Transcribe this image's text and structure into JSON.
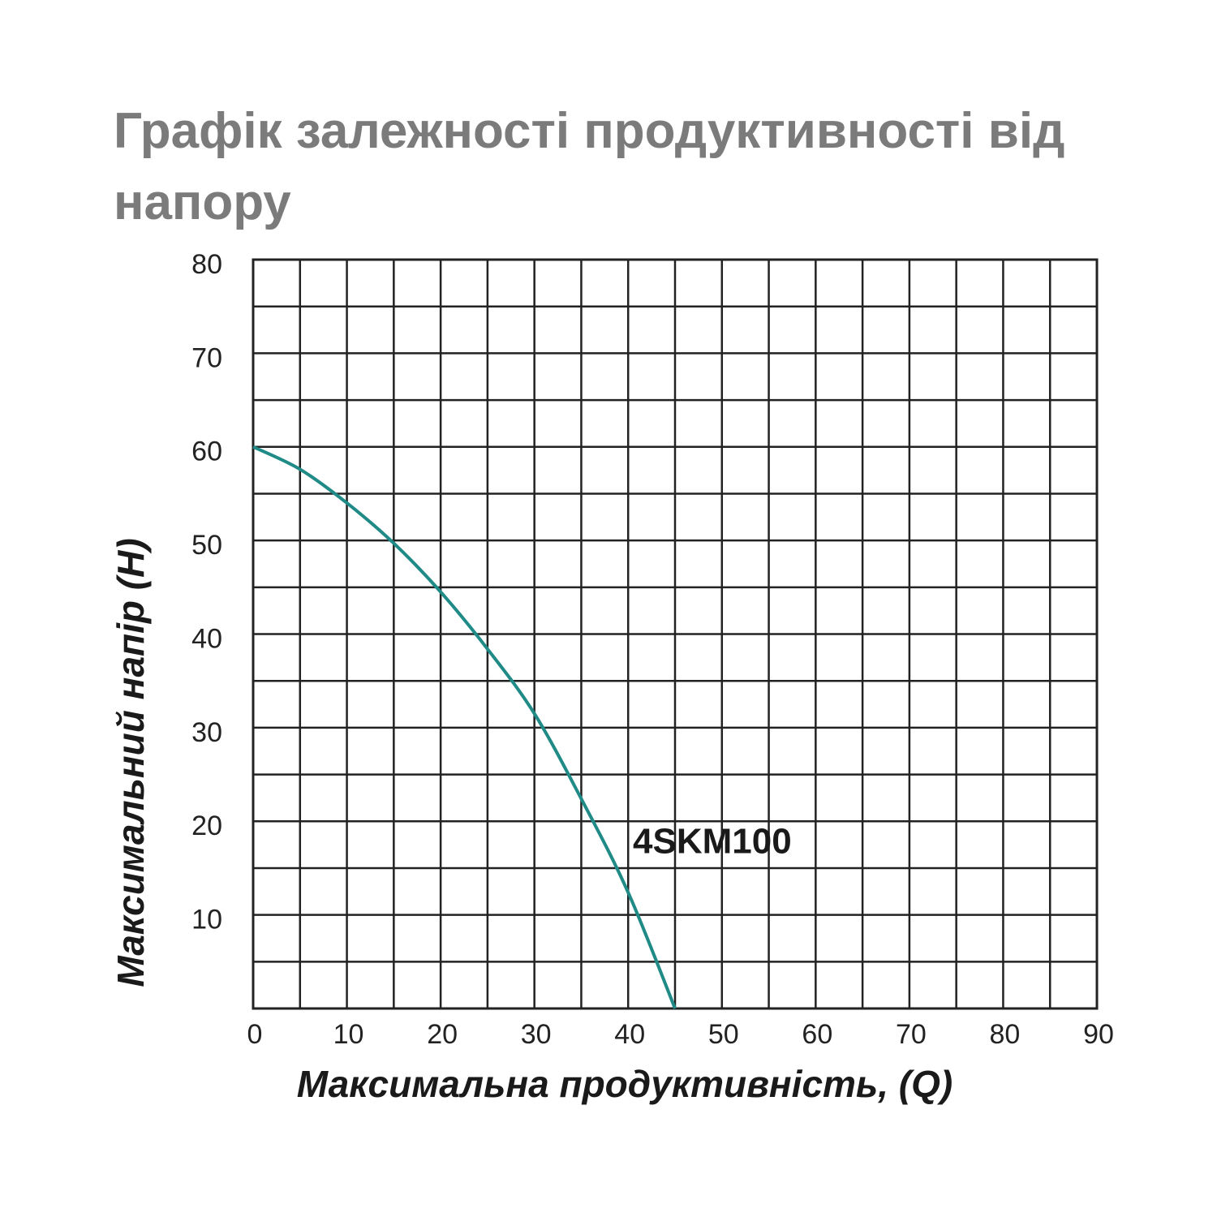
{
  "chart_data": {
    "type": "line",
    "title": "Графік залежності продуктивності від напору",
    "x_label": "Максимальна продуктивність, (Q)",
    "y_label": "Максимальний напір (H)",
    "x": [
      0,
      5,
      10,
      15,
      20,
      25,
      30,
      35,
      40,
      45
    ],
    "series": [
      {
        "name": "4SKM100",
        "color": "#1f8a86",
        "values": [
          60,
          57.6,
          54,
          49.7,
          44.5,
          38.4,
          31.5,
          22.4,
          12.4,
          0
        ]
      }
    ],
    "xlim": [
      0,
      90
    ],
    "ylim": [
      0,
      80
    ],
    "xticks": [
      0,
      10,
      20,
      30,
      40,
      50,
      60,
      70,
      80,
      90
    ],
    "yticks": [
      10,
      20,
      30,
      40,
      50,
      60,
      70,
      80
    ],
    "x_minor_ticks": [
      5,
      15,
      25,
      35,
      45,
      55,
      65,
      75,
      85
    ],
    "y_minor_ticks": [
      5,
      15,
      25,
      35,
      45,
      55,
      65,
      75
    ],
    "grid": true
  }
}
